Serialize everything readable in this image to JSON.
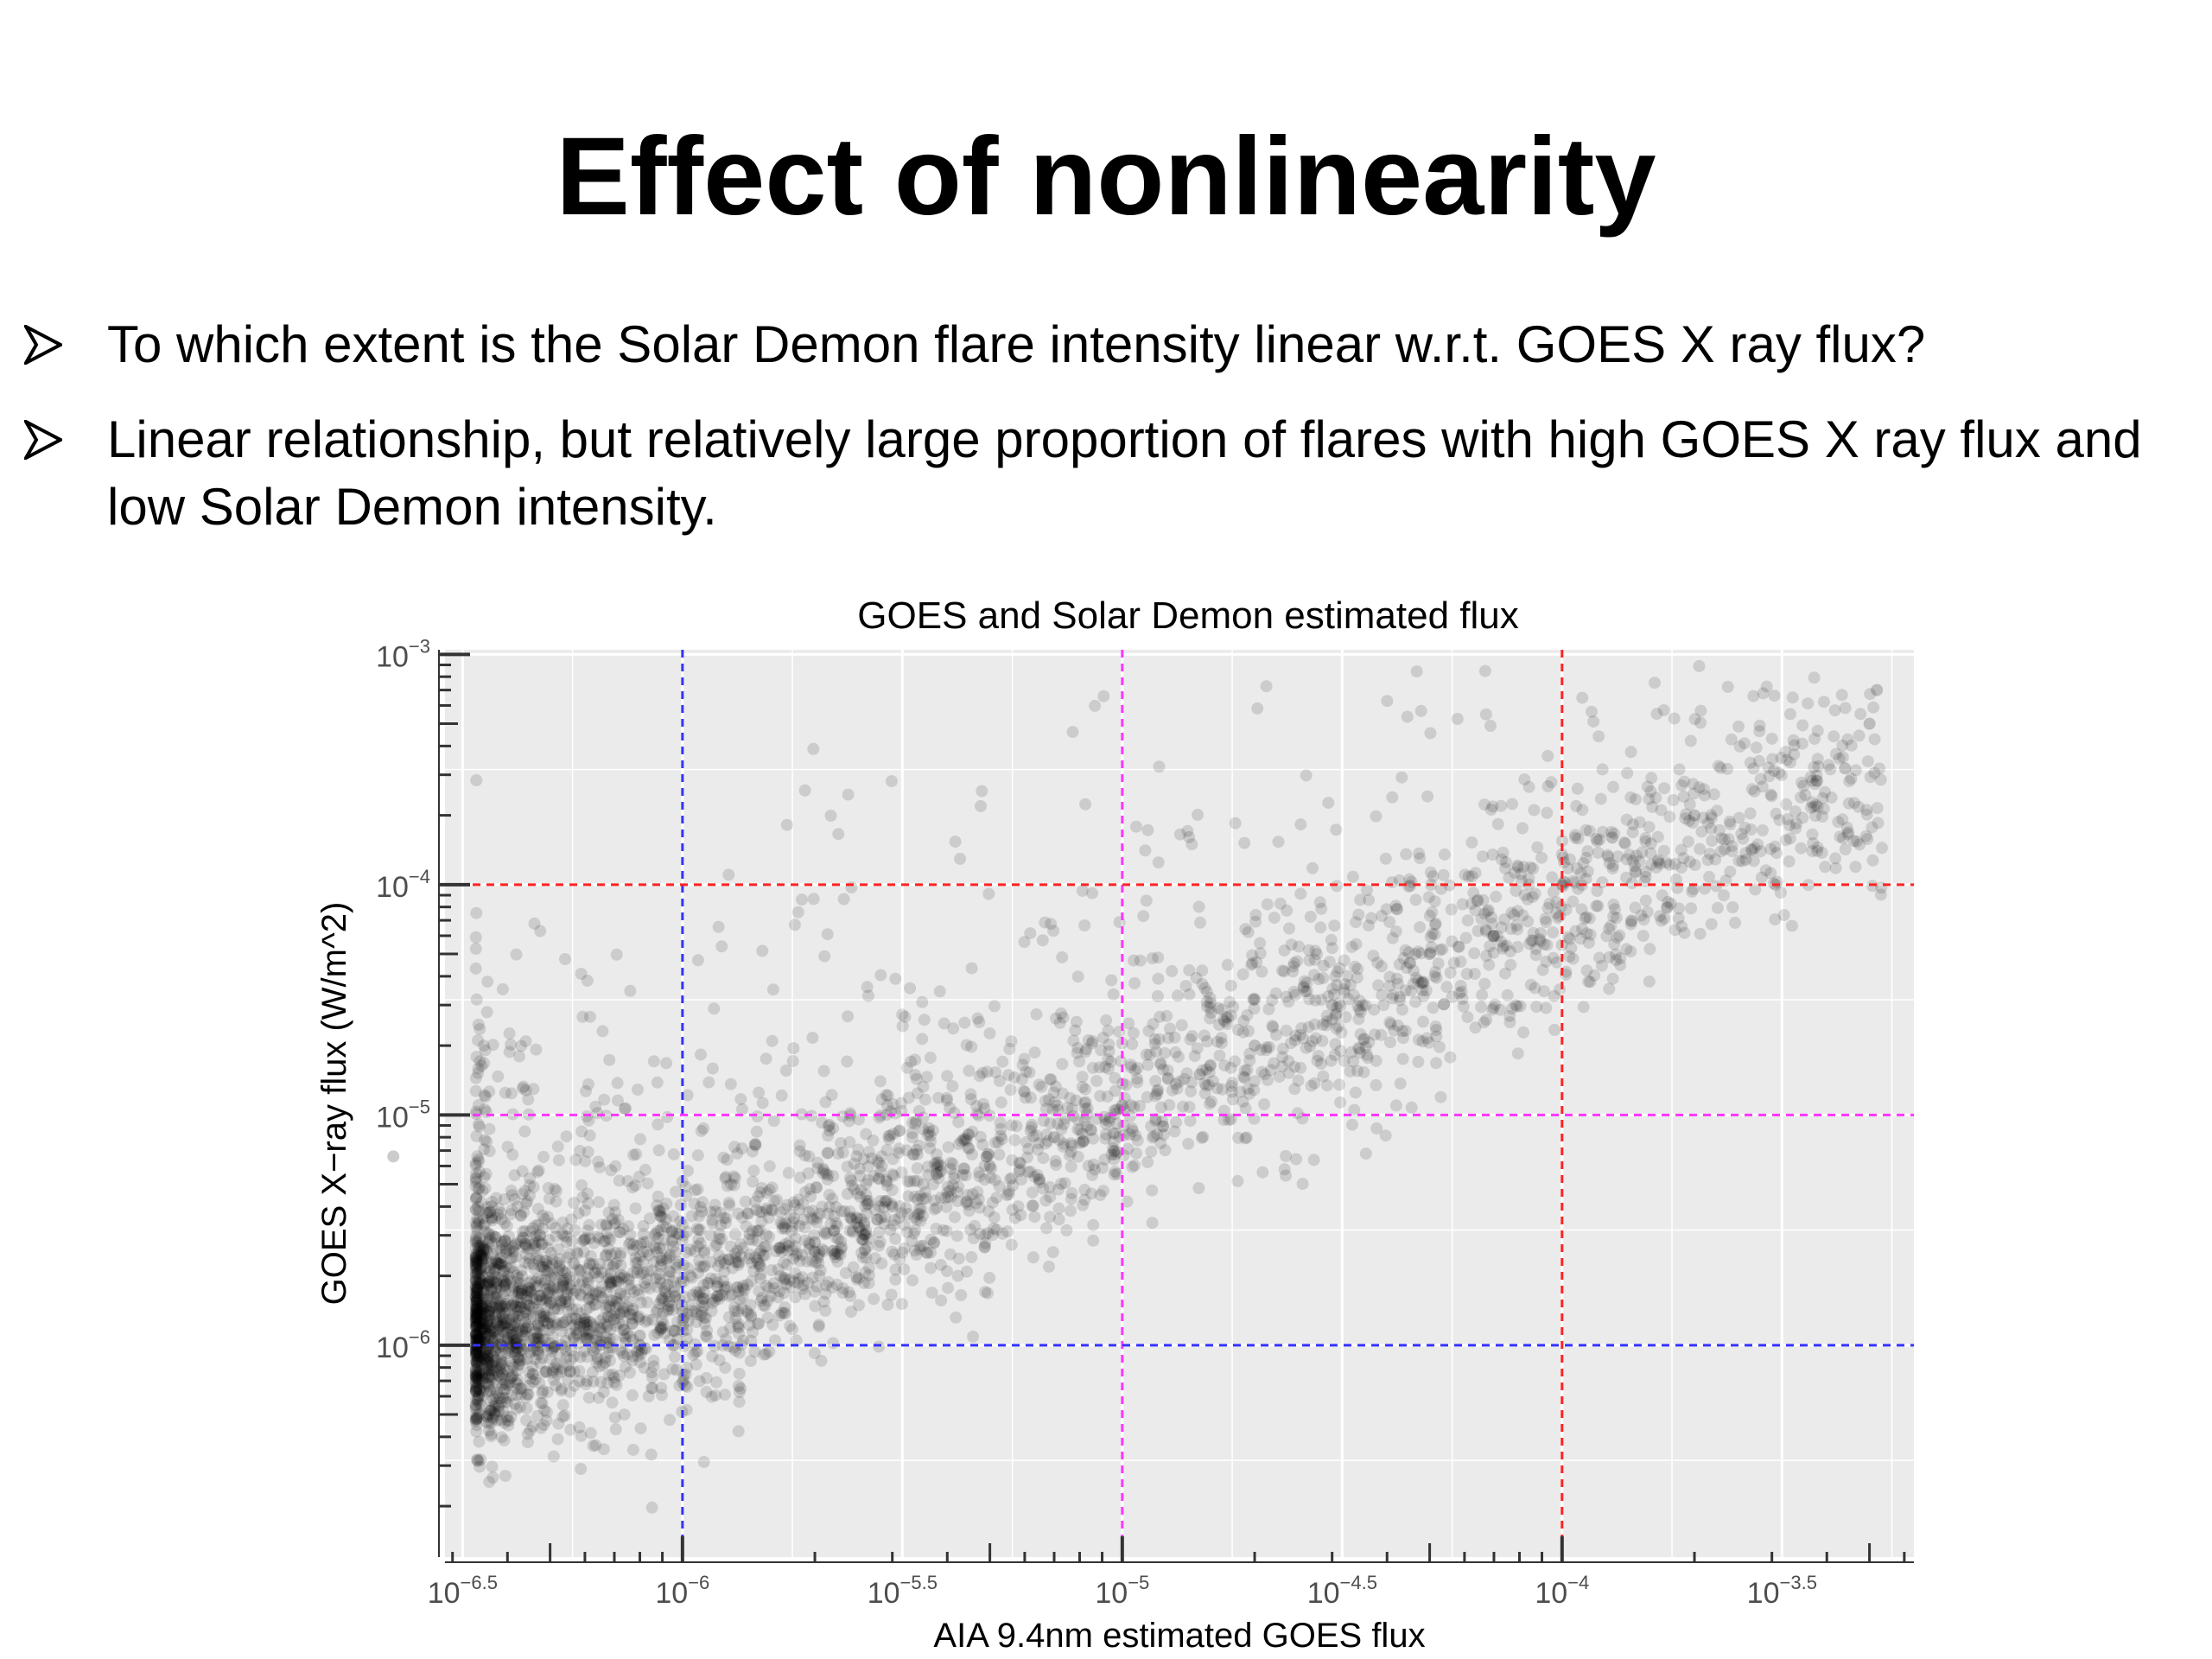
{
  "slide": {
    "title": "Effect of nonlinearity",
    "bullets": [
      "To which extent is the Solar Demon flare intensity linear w.r.t. GOES X ray flux?",
      "Linear relationship, but relatively large proportion of flares with high GOES X ray flux and low Solar Demon intensity."
    ]
  },
  "chart_data": {
    "type": "scatter",
    "title": "GOES and Solar Demon estimated flux",
    "xlabel": "AIA 9.4nm estimated GOES flux",
    "ylabel": "GOES X−ray flux (W/m^2)",
    "x_scale": "log10",
    "y_scale": "log10",
    "xlim_log10": [
      -6.54,
      -3.2
    ],
    "ylim_log10": [
      -6.92,
      -2.98
    ],
    "x_ticks": [
      {
        "base": "10",
        "exp": "−6.5"
      },
      {
        "base": "10",
        "exp": "−6"
      },
      {
        "base": "10",
        "exp": "−5.5"
      },
      {
        "base": "10",
        "exp": "−5"
      },
      {
        "base": "10",
        "exp": "−4.5"
      },
      {
        "base": "10",
        "exp": "−4"
      },
      {
        "base": "10",
        "exp": "−3.5"
      }
    ],
    "y_ticks": [
      {
        "base": "10",
        "exp": "−6"
      },
      {
        "base": "10",
        "exp": "−5"
      },
      {
        "base": "10",
        "exp": "−4"
      },
      {
        "base": "10",
        "exp": "−3"
      }
    ],
    "grid": true,
    "legend": "none",
    "colors": {
      "panel": "#ebebeb",
      "grid": "#ffffff",
      "points": "#000000",
      "c_class": "#3333ff",
      "m_class": "#ff33ff",
      "x_class": "#ff2222"
    },
    "reference_lines": [
      {
        "axis": "x",
        "value": 1e-06,
        "color": "#3333ff"
      },
      {
        "axis": "x",
        "value": 1e-05,
        "color": "#ff33ff"
      },
      {
        "axis": "x",
        "value": 0.0001,
        "color": "#ff2222"
      },
      {
        "axis": "y",
        "value": 1e-06,
        "color": "#3333ff"
      },
      {
        "axis": "y",
        "value": 1e-05,
        "color": "#ff33ff"
      },
      {
        "axis": "y",
        "value": 0.0001,
        "color": "#ff2222"
      }
    ],
    "series": [
      {
        "point_count": 4000,
        "points": [
          [
            6.5e-07,
            1e-06
          ],
          [
            7e-07,
            1.3e-06
          ],
          [
            8e-07,
            1.1e-06
          ],
          [
            9e-07,
            1.6e-06
          ],
          [
            1e-06,
            1.4e-06
          ],
          [
            1.2e-06,
            1.8e-06
          ],
          [
            1.5e-06,
            2.2e-06
          ],
          [
            2e-06,
            2.8e-06
          ],
          [
            3e-06,
            4e-06
          ],
          [
            5e-06,
            6e-06
          ],
          [
            7e-06,
            8e-06
          ],
          [
            1e-05,
            1.1e-05
          ],
          [
            1.5e-05,
            1.5e-05
          ],
          [
            2e-05,
            2e-05
          ],
          [
            3e-05,
            3e-05
          ],
          [
            5e-05,
            5e-05
          ],
          [
            7e-05,
            6e-05
          ],
          [
            0.0001,
            0.0001
          ],
          [
            0.00013,
            0.00016
          ],
          [
            0.0002,
            0.0002
          ],
          [
            0.00044,
            0.00032
          ],
          [
            0.0005,
            0.0005
          ],
          [
            0.00052,
            0.0007
          ],
          [
            2.6e-06,
            2.6e-06
          ],
          [
            2.2e-07,
            6.6e-06
          ]
        ],
        "cloud_model": {
          "ridge_log10": [
            [
              -6.5,
              -5.95
            ],
            [
              -6.0,
              -5.8
            ],
            [
              -5.5,
              -5.4
            ],
            [
              -5.0,
              -5.0
            ],
            [
              -4.5,
              -4.6
            ],
            [
              -4.0,
              -4.15
            ],
            [
              -3.5,
              -3.65
            ]
          ],
          "spread_below_dex": 0.22,
          "spread_above_dex": 0.36,
          "above_tail_fraction": 0.18
        }
      }
    ]
  }
}
